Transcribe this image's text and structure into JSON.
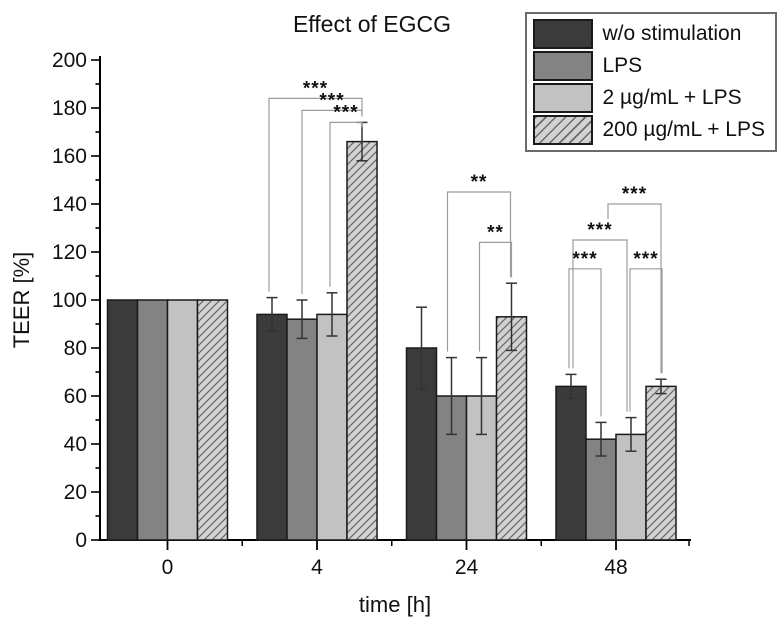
{
  "title": "Effect of EGCG",
  "chart_data": {
    "type": "bar",
    "title": "Effect of EGCG",
    "xlabel": "time [h]",
    "ylabel": "TEER [%]",
    "ylim": [
      0,
      200
    ],
    "y_ticks": [
      0,
      20,
      40,
      60,
      80,
      100,
      120,
      140,
      160,
      180,
      200
    ],
    "y_minor_step": 10,
    "categories": [
      "0",
      "4",
      "24",
      "48"
    ],
    "series": [
      {
        "name": "w/o stimulation",
        "fill": "#3b3b3b",
        "pattern": "solid",
        "values": [
          100,
          94,
          80,
          64
        ],
        "errors": [
          0,
          7,
          17,
          5
        ]
      },
      {
        "name": "LPS",
        "fill": "#838383",
        "pattern": "solid",
        "values": [
          100,
          92,
          60,
          42
        ],
        "errors": [
          0,
          8,
          16,
          7
        ]
      },
      {
        "name": "2 µg/mL + LPS",
        "fill": "#c2c2c2",
        "pattern": "solid",
        "values": [
          100,
          94,
          60,
          44
        ],
        "errors": [
          0,
          9,
          16,
          7
        ]
      },
      {
        "name": "200 µg/mL + LPS",
        "fill": "#d2d2d2",
        "pattern": "hatch",
        "values": [
          100,
          166,
          93,
          64
        ],
        "errors": [
          0,
          8,
          14,
          3
        ]
      }
    ],
    "significance_brackets": [
      {
        "category": "4",
        "from": 0,
        "to": 3,
        "label": "***",
        "y": 184,
        "dx1": -3
      },
      {
        "category": "4",
        "from": 1,
        "to": 3,
        "label": "***",
        "y": 179
      },
      {
        "category": "4",
        "from": 2,
        "to": 3,
        "label": "***",
        "y": 174,
        "dx1": -2
      },
      {
        "category": "24",
        "from": 1,
        "to": 3,
        "label": "**",
        "y": 145,
        "dx1": -4,
        "dx2": -1
      },
      {
        "category": "24",
        "from": 2,
        "to": 3,
        "label": "**",
        "y": 124,
        "dx1": -2
      },
      {
        "category": "48",
        "from": 1,
        "to": 3,
        "label": "***",
        "y": 140,
        "dx1": 7,
        "short_left": true
      },
      {
        "category": "48",
        "from": 0,
        "to": 2,
        "label": "***",
        "y": 125,
        "dx1": 2,
        "dx2": -4
      },
      {
        "category": "48",
        "from": 0,
        "to": 1,
        "label": "***",
        "y": 113,
        "dx1": -2
      },
      {
        "category": "48",
        "from": 2,
        "to": 3,
        "label": "***",
        "y": 113,
        "dx1": -1,
        "dx2": 1
      }
    ],
    "legend_position": "top-right",
    "grid": false
  },
  "colors": {
    "axis": "#000000",
    "bar_border": "#1a1a1a",
    "error_bar": "#333333",
    "bracket": "#9c9c9c",
    "stars": "#000000",
    "hatch_line": "#6a6a6a",
    "legend_border": "#6b6b6b",
    "text": "#111111",
    "background": "#ffffff"
  }
}
